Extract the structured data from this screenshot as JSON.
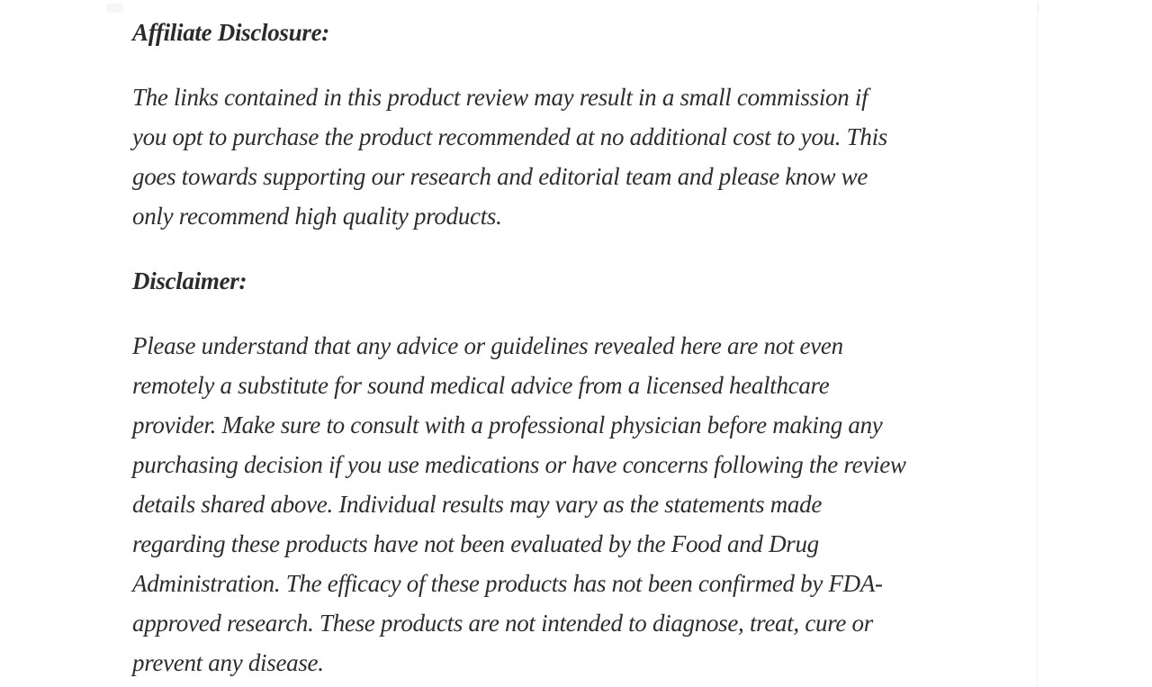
{
  "page": {
    "background_color": "#ffffff",
    "text_color": "#2d2d2d",
    "top_strip_color": "#f6f6f6"
  },
  "article": {
    "affiliate": {
      "heading": "Affiliate Disclosure:",
      "paragraph_lines": [
        "The links contained in this product review may result in a small commission if",
        "you opt to purchase the product recommended at no additional cost to you. This",
        "goes towards supporting our research and editorial team and please know we",
        "only recommend high quality products."
      ]
    },
    "disclaimer": {
      "heading": "Disclaimer:",
      "paragraph_lines": [
        "Please understand that any advice or guidelines revealed here are not even",
        "remotely a substitute for sound medical advice from a licensed healthcare",
        "provider. Make sure to consult with a professional physician before making any",
        "purchasing decision if you use medications or have concerns following the review",
        "details shared above. Individual results may vary as the statements made",
        "regarding these products have not been evaluated by the Food and Drug",
        "Administration. The efficacy of these products has not been confirmed by FDA-",
        "approved research. These products are not intended to diagnose, treat, cure or",
        "prevent any disease."
      ]
    }
  }
}
